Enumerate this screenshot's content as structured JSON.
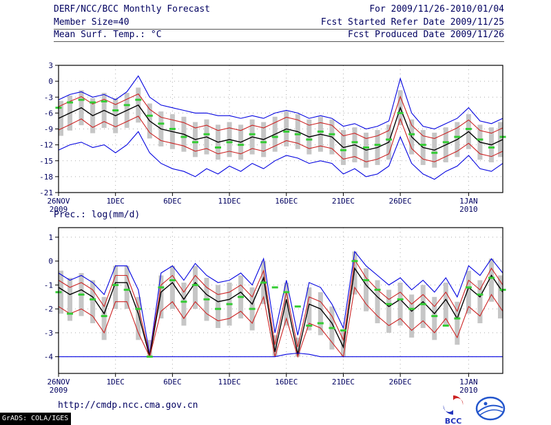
{
  "header": {
    "title": "DERF/NCC/BCC Monthly Forecast",
    "member_size": "Member Size=40",
    "temp_label": "Mean Surf. Temp.: °C",
    "for_range": "For 2009/11/26-2010/01/04",
    "fcst_started": "Fcst Started Refer Date 2009/11/25",
    "fcst_produced": "Fcst Produced Date 2009/11/26"
  },
  "precip_label": "Prec.: log(mm/d)",
  "footer": {
    "url": "http://cmdp.ncc.cma.gov.cn",
    "bcc_logo_text": "BCC",
    "grads_stamp": "GrADS: COLA/IGES"
  },
  "colors": {
    "blue": "#0000e0",
    "red": "#cc2222",
    "black": "#000000",
    "bar": "#c6c6c6",
    "obs": "#33cc33",
    "grid": "#aaaaaa",
    "axis": "#000000",
    "text": "#000060"
  },
  "chart_data": [
    {
      "type": "line",
      "title": "Mean Surf. Temp.: °C",
      "xlabel": "",
      "ylabel": "°C",
      "ylim": [
        -21,
        3
      ],
      "yticks": [
        3,
        0,
        -3,
        -6,
        -9,
        -12,
        -15,
        -18,
        -21
      ],
      "x_days": 40,
      "xticks": [
        {
          "pos": 0,
          "label": "26NOV",
          "sublabel": "2009"
        },
        {
          "pos": 5,
          "label": "1DEC"
        },
        {
          "pos": 10,
          "label": "6DEC"
        },
        {
          "pos": 15,
          "label": "11DEC"
        },
        {
          "pos": 20,
          "label": "16DEC"
        },
        {
          "pos": 25,
          "label": "21DEC"
        },
        {
          "pos": 30,
          "label": "26DEC"
        },
        {
          "pos": 36,
          "label": "1JAN",
          "sublabel": "2010"
        }
      ],
      "series": [
        {
          "name": "max",
          "color": "blue",
          "values": [
            -3.5,
            -2.5,
            -2.0,
            -3.0,
            -2.5,
            -3.5,
            -2.0,
            1.0,
            -3.0,
            -4.5,
            -5.0,
            -5.5,
            -6.0,
            -6.0,
            -6.5,
            -6.5,
            -7.0,
            -6.5,
            -7.0,
            -6.0,
            -5.5,
            -6.0,
            -7.0,
            -6.5,
            -7.0,
            -8.5,
            -8.0,
            -9.0,
            -8.5,
            -7.5,
            0.5,
            -6.0,
            -8.5,
            -9.0,
            -8.0,
            -7.0,
            -5.0,
            -7.5,
            -8.0,
            -7.0
          ]
        },
        {
          "name": "p75",
          "color": "red",
          "values": [
            -4.8,
            -3.8,
            -2.9,
            -4.3,
            -3.4,
            -4.4,
            -3.4,
            -2.4,
            -5.3,
            -6.8,
            -7.3,
            -7.8,
            -8.8,
            -8.3,
            -9.3,
            -8.8,
            -9.3,
            -8.3,
            -8.8,
            -7.8,
            -6.8,
            -7.3,
            -8.3,
            -7.8,
            -8.3,
            -10.3,
            -9.8,
            -10.8,
            -10.3,
            -9.3,
            -2.9,
            -8.3,
            -10.3,
            -10.8,
            -9.8,
            -8.8,
            -7.3,
            -9.3,
            -9.8,
            -8.8
          ]
        },
        {
          "name": "mean",
          "color": "black",
          "values": [
            -7.0,
            -6.0,
            -5.0,
            -6.5,
            -5.5,
            -6.5,
            -5.5,
            -4.5,
            -7.5,
            -9.0,
            -9.5,
            -10.0,
            -11.0,
            -10.5,
            -11.5,
            -11.0,
            -11.5,
            -10.5,
            -11.0,
            -10.0,
            -9.0,
            -9.5,
            -10.5,
            -10.0,
            -10.5,
            -12.5,
            -12.0,
            -13.0,
            -12.5,
            -11.5,
            -5.0,
            -10.5,
            -12.5,
            -13.0,
            -12.0,
            -11.0,
            -9.5,
            -11.5,
            -12.0,
            -11.0
          ]
        },
        {
          "name": "p25",
          "color": "red",
          "values": [
            -9.2,
            -8.2,
            -7.1,
            -8.7,
            -7.6,
            -8.6,
            -7.6,
            -6.6,
            -9.7,
            -11.2,
            -11.7,
            -12.2,
            -13.2,
            -12.7,
            -13.7,
            -13.2,
            -13.7,
            -12.7,
            -13.2,
            -12.2,
            -11.2,
            -11.7,
            -12.7,
            -12.2,
            -12.7,
            -14.7,
            -14.2,
            -15.2,
            -14.7,
            -13.7,
            -7.1,
            -12.7,
            -14.7,
            -15.2,
            -14.2,
            -13.2,
            -11.7,
            -13.7,
            -14.2,
            -13.2
          ]
        },
        {
          "name": "min",
          "color": "blue",
          "values": [
            -13.0,
            -12.0,
            -11.5,
            -12.5,
            -12.0,
            -13.5,
            -12.0,
            -9.5,
            -13.5,
            -15.5,
            -16.5,
            -17.0,
            -18.0,
            -16.5,
            -17.5,
            -16.0,
            -17.0,
            -15.5,
            -16.5,
            -15.0,
            -14.0,
            -14.5,
            -15.5,
            -15.0,
            -15.5,
            -17.5,
            -16.5,
            -18.0,
            -17.5,
            -16.0,
            -10.5,
            -15.5,
            -17.5,
            -18.5,
            -17.0,
            -16.0,
            -14.0,
            -16.5,
            -17.0,
            -15.5
          ]
        }
      ],
      "markers": {
        "name": "obs",
        "values": [
          -5.0,
          -4.0,
          -3.5,
          -4.0,
          -3.8,
          -5.5,
          -4.5,
          -3.5,
          -6.5,
          -8.0,
          -9.0,
          -10.5,
          -11.5,
          -10.0,
          -12.5,
          -11.5,
          -12.0,
          -10.0,
          -11.5,
          -10.5,
          -9.5,
          -10.0,
          -11.0,
          -9.5,
          -10.0,
          -13.0,
          -11.5,
          -12.5,
          -12.0,
          -11.0,
          -6.0,
          -10.0,
          -12.0,
          -13.5,
          -11.5,
          -10.5,
          -9.0,
          -11.0,
          -12.5,
          -10.5
        ]
      },
      "bars": {
        "low": [
          -10.3,
          -9.3,
          -8.3,
          -9.8,
          -8.8,
          -9.8,
          -8.8,
          -7.8,
          -10.8,
          -12.3,
          -12.8,
          -13.3,
          -14.3,
          -13.8,
          -14.8,
          -14.3,
          -14.8,
          -13.8,
          -14.3,
          -13.3,
          -12.3,
          -12.8,
          -13.8,
          -13.3,
          -13.8,
          -15.8,
          -15.3,
          -16.3,
          -15.8,
          -14.8,
          -8.3,
          -13.8,
          -15.8,
          -16.3,
          -15.3,
          -14.3,
          -12.8,
          -14.8,
          -15.3,
          -14.3
        ],
        "high": [
          -3.7,
          -2.7,
          -1.7,
          -3.2,
          -2.2,
          -3.2,
          -2.2,
          -1.2,
          -4.2,
          -5.7,
          -6.2,
          -6.7,
          -7.7,
          -7.2,
          -8.2,
          -7.7,
          -8.2,
          -7.2,
          -7.7,
          -6.7,
          -5.7,
          -6.2,
          -7.2,
          -6.7,
          -7.2,
          -9.2,
          -8.7,
          -9.7,
          -9.2,
          -8.2,
          -1.7,
          -7.2,
          -9.2,
          -9.7,
          -8.7,
          -7.7,
          -6.2,
          -8.2,
          -8.7,
          -7.7
        ]
      }
    },
    {
      "type": "line",
      "title": "Prec.: log(mm/d)",
      "xlabel": "",
      "ylabel": "log(mm/d)",
      "ylim": [
        -4.7,
        1.4
      ],
      "yticks": [
        1,
        0,
        -1,
        -2,
        -3,
        -4
      ],
      "x_days": 40,
      "xticks": [
        {
          "pos": 0,
          "label": "26NOV",
          "sublabel": "2009"
        },
        {
          "pos": 5,
          "label": "1DEC"
        },
        {
          "pos": 10,
          "label": "6DEC"
        },
        {
          "pos": 15,
          "label": "11DEC"
        },
        {
          "pos": 20,
          "label": "16DEC"
        },
        {
          "pos": 25,
          "label": "21DEC"
        },
        {
          "pos": 30,
          "label": "26DEC"
        },
        {
          "pos": 36,
          "label": "1JAN",
          "sublabel": "2010"
        }
      ],
      "series": [
        {
          "name": "max",
          "color": "blue",
          "values": [
            -0.5,
            -0.8,
            -0.6,
            -0.9,
            -1.4,
            -0.2,
            -0.2,
            -1.2,
            -3.9,
            -0.5,
            -0.2,
            -0.8,
            -0.1,
            -0.6,
            -0.9,
            -0.8,
            -0.5,
            -1.0,
            0.1,
            -3.0,
            -0.8,
            -3.1,
            -0.9,
            -1.1,
            -1.8,
            -2.8,
            0.4,
            -0.2,
            -0.6,
            -1.0,
            -0.7,
            -1.2,
            -0.8,
            -1.3,
            -0.7,
            -1.5,
            -0.2,
            -0.6,
            0.1,
            -0.5
          ]
        },
        {
          "name": "p75",
          "color": "red",
          "values": [
            -0.8,
            -1.1,
            -0.9,
            -1.2,
            -1.9,
            -0.6,
            -0.6,
            -1.9,
            -3.95,
            -1.0,
            -0.6,
            -1.3,
            -0.6,
            -1.1,
            -1.4,
            -1.3,
            -1.0,
            -1.5,
            -0.4,
            -3.5,
            -1.3,
            -3.6,
            -1.5,
            -1.7,
            -2.3,
            -3.3,
            0.05,
            -0.7,
            -1.2,
            -1.6,
            -1.3,
            -1.8,
            -1.4,
            -1.9,
            -1.3,
            -2.1,
            -0.8,
            -1.2,
            -0.3,
            -1.0
          ]
        },
        {
          "name": "mean",
          "color": "black",
          "values": [
            -1.1,
            -1.4,
            -1.2,
            -1.5,
            -2.2,
            -0.9,
            -0.9,
            -2.2,
            -4.0,
            -1.3,
            -0.9,
            -1.6,
            -0.9,
            -1.4,
            -1.7,
            -1.6,
            -1.3,
            -1.8,
            -0.7,
            -3.8,
            -1.6,
            -3.9,
            -1.8,
            -2.0,
            -2.6,
            -3.6,
            -0.3,
            -1.0,
            -1.5,
            -1.9,
            -1.6,
            -2.1,
            -1.7,
            -2.2,
            -1.6,
            -2.4,
            -1.1,
            -1.5,
            -0.6,
            -1.3
          ]
        },
        {
          "name": "p25",
          "color": "red",
          "values": [
            -1.9,
            -2.2,
            -2.0,
            -2.3,
            -3.0,
            -1.7,
            -1.7,
            -3.0,
            -4.0,
            -2.1,
            -1.7,
            -2.4,
            -1.7,
            -2.2,
            -2.5,
            -2.4,
            -2.1,
            -2.6,
            -1.5,
            -4.0,
            -2.4,
            -4.0,
            -2.6,
            -2.8,
            -3.4,
            -4.0,
            -1.1,
            -1.8,
            -2.3,
            -2.7,
            -2.4,
            -2.9,
            -2.5,
            -3.0,
            -2.4,
            -3.2,
            -1.9,
            -2.3,
            -1.4,
            -2.1
          ]
        },
        {
          "name": "min",
          "color": "blue",
          "values": [
            -4,
            -4,
            -4,
            -4,
            -4,
            -4,
            -4,
            -4,
            -4,
            -4,
            -4,
            -4,
            -4,
            -4,
            -4,
            -4,
            -4,
            -4,
            -4,
            -4,
            -3.9,
            -3.85,
            -3.9,
            -4,
            -4,
            -4,
            -4,
            -4,
            -4,
            -4,
            -4,
            -4,
            -4,
            -4,
            -4,
            -4,
            -4,
            -4,
            -4,
            -4
          ]
        }
      ],
      "markers": {
        "name": "obs",
        "values": [
          -1.3,
          -2.2,
          -1.4,
          -1.6,
          -2.3,
          -1.0,
          -1.2,
          -2.0,
          -4.0,
          -1.1,
          -0.8,
          -1.7,
          -1.0,
          -1.6,
          -2.0,
          -1.8,
          -1.5,
          -2.0,
          -0.9,
          -1.1,
          -1.3,
          -1.9,
          -2.7,
          -2.6,
          -2.8,
          -2.9,
          0.0,
          -0.8,
          -1.2,
          -1.8,
          -1.6,
          -2.0,
          -1.8,
          -2.3,
          -2.7,
          -2.4,
          -1.1,
          -1.4,
          -0.7,
          -1.2
        ]
      },
      "bars": {
        "low": [
          -2.2,
          -2.5,
          -2.3,
          -2.6,
          -3.3,
          -2.0,
          -2.0,
          -3.3,
          -4.0,
          -2.4,
          -2.0,
          -2.7,
          -2.0,
          -2.5,
          -2.8,
          -2.7,
          -2.4,
          -2.9,
          -1.8,
          -4.0,
          -2.7,
          -4.0,
          -2.9,
          -3.1,
          -3.7,
          -4.0,
          -1.4,
          -2.1,
          -2.6,
          -3.0,
          -2.7,
          -3.2,
          -2.8,
          -3.3,
          -2.7,
          -3.5,
          -2.2,
          -2.6,
          -1.7,
          -2.4
        ],
        "high": [
          -0.4,
          -0.7,
          -0.5,
          -0.8,
          -1.5,
          -0.2,
          -0.2,
          -1.5,
          -3.3,
          -0.6,
          -0.2,
          -0.9,
          -0.2,
          -0.7,
          -1.0,
          -0.9,
          -0.6,
          -1.1,
          0.0,
          -3.1,
          -0.9,
          -3.2,
          -1.1,
          -1.3,
          -1.9,
          -2.9,
          0.4,
          -0.3,
          -0.8,
          -1.2,
          -0.9,
          -1.4,
          -1.0,
          -1.5,
          -0.9,
          -1.7,
          -0.4,
          -0.8,
          0.1,
          -0.6
        ]
      }
    }
  ]
}
